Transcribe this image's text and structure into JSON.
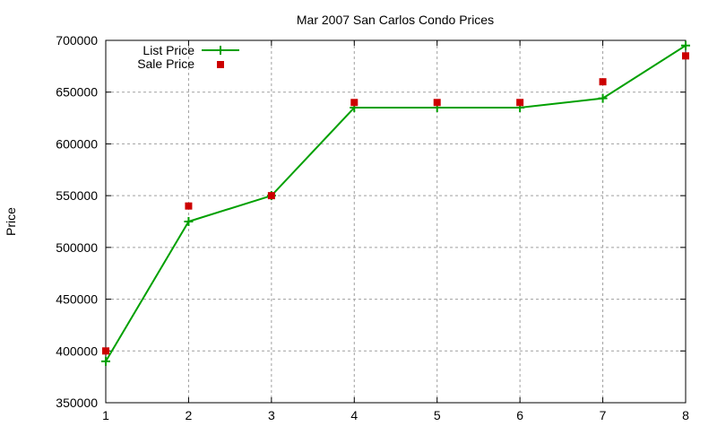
{
  "chart_data": {
    "type": "line",
    "title": "Mar 2007 San Carlos Condo Prices",
    "xlabel": "",
    "ylabel": "Price",
    "x": [
      1,
      2,
      3,
      4,
      5,
      6,
      7,
      8
    ],
    "xlim": [
      1,
      8
    ],
    "ylim": [
      350000,
      700000
    ],
    "xticks": [
      "1",
      "2",
      "3",
      "4",
      "5",
      "6",
      "7",
      "8"
    ],
    "yticks": [
      "350000",
      "400000",
      "450000",
      "500000",
      "550000",
      "600000",
      "650000",
      "700000"
    ],
    "grid": true,
    "legend_position": "top-left",
    "series": [
      {
        "name": "List Price",
        "style": "line+points",
        "marker": "plus",
        "color": "#00a000",
        "values": [
          390000,
          525000,
          550000,
          635000,
          635000,
          635000,
          644000,
          695000
        ]
      },
      {
        "name": "Sale Price",
        "style": "points",
        "marker": "square",
        "color": "#cc0000",
        "values": [
          400000,
          540000,
          550000,
          640000,
          640000,
          640000,
          660000,
          685000
        ]
      }
    ]
  }
}
